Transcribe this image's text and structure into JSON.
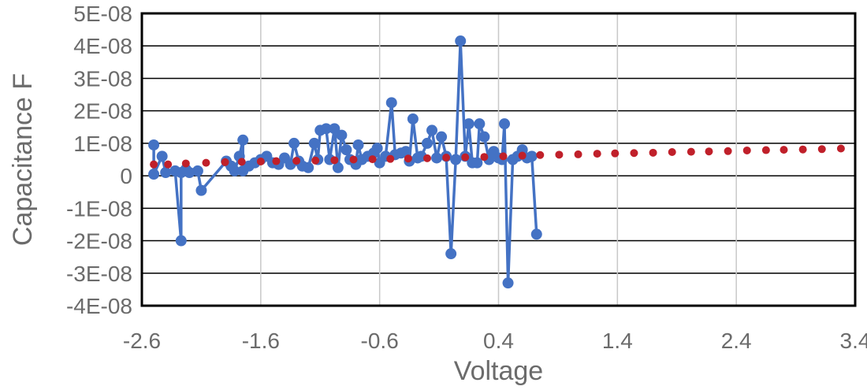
{
  "chart_data": {
    "type": "scatter",
    "title": "",
    "xlabel": "Voltage",
    "ylabel": "Capacitance F",
    "xlim": [
      -2.6,
      3.4
    ],
    "ylim": [
      -4e-08,
      5e-08
    ],
    "x_ticks": [
      -2.6,
      -1.6,
      -0.6,
      0.4,
      1.4,
      2.4,
      3.4
    ],
    "x_tick_labels": [
      "-2.6",
      "-1.6",
      "-0.6",
      "0.4",
      "1.4",
      "2.4",
      "3.4"
    ],
    "y_ticks": [
      5e-08,
      4e-08,
      3e-08,
      2e-08,
      1e-08,
      0,
      -1e-08,
      -2e-08,
      -3e-08,
      -4e-08
    ],
    "y_tick_labels": [
      "5E-08",
      "4E-08",
      "3E-08",
      "2E-08",
      "1E-08",
      "0",
      "-1E-08",
      "-2E-08",
      "-3E-08",
      "-4E-08"
    ],
    "grid": {
      "horizontal": true,
      "vertical": true
    },
    "legend": "none",
    "series": [
      {
        "color": "#4472c4",
        "style": "line-markers",
        "points": [
          [
            -2.5,
            9.5e-09
          ],
          [
            -2.5,
            5e-10
          ],
          [
            -2.43,
            6e-09
          ],
          [
            -2.4,
            1e-09
          ],
          [
            -2.32,
            1.5e-09
          ],
          [
            -2.27,
            -2e-08
          ],
          [
            -2.27,
            1e-09
          ],
          [
            -2.23,
            2e-09
          ],
          [
            -2.2,
            1e-09
          ],
          [
            -2.13,
            1.5e-09
          ],
          [
            -2.1,
            -4.5e-09
          ],
          [
            -1.89,
            4.5e-09
          ],
          [
            -1.85,
            3e-09
          ],
          [
            -1.82,
            1.5e-09
          ],
          [
            -1.78,
            6e-09
          ],
          [
            -1.75,
            1.1e-08
          ],
          [
            -1.75,
            1.5e-09
          ],
          [
            -1.7,
            3e-09
          ],
          [
            -1.65,
            4e-09
          ],
          [
            -1.6,
            5e-09
          ],
          [
            -1.55,
            6e-09
          ],
          [
            -1.5,
            4e-09
          ],
          [
            -1.45,
            3.5e-09
          ],
          [
            -1.4,
            5.5e-09
          ],
          [
            -1.35,
            3.5e-09
          ],
          [
            -1.32,
            1e-08
          ],
          [
            -1.28,
            4.5e-09
          ],
          [
            -1.25,
            3e-09
          ],
          [
            -1.2,
            2.5e-09
          ],
          [
            -1.15,
            1e-08
          ],
          [
            -1.12,
            5e-09
          ],
          [
            -1.1,
            1.4e-08
          ],
          [
            -1.05,
            1.45e-08
          ],
          [
            -1.02,
            5e-09
          ],
          [
            -0.98,
            1.45e-08
          ],
          [
            -0.95,
            2.5e-09
          ],
          [
            -0.92,
            1.25e-08
          ],
          [
            -0.88,
            8e-09
          ],
          [
            -0.85,
            5e-09
          ],
          [
            -0.8,
            3.5e-09
          ],
          [
            -0.78,
            9.5e-09
          ],
          [
            -0.75,
            5e-09
          ],
          [
            -0.7,
            6e-09
          ],
          [
            -0.65,
            7e-09
          ],
          [
            -0.62,
            8.5e-09
          ],
          [
            -0.6,
            4e-09
          ],
          [
            -0.55,
            6e-09
          ],
          [
            -0.5,
            2.25e-08
          ],
          [
            -0.47,
            6.5e-09
          ],
          [
            -0.42,
            7e-09
          ],
          [
            -0.38,
            7.5e-09
          ],
          [
            -0.35,
            4.5e-09
          ],
          [
            -0.32,
            1.75e-08
          ],
          [
            -0.28,
            5.5e-09
          ],
          [
            -0.25,
            6e-09
          ],
          [
            -0.2,
            1e-08
          ],
          [
            -0.16,
            1.4e-08
          ],
          [
            -0.12,
            5.5e-09
          ],
          [
            -0.08,
            1.2e-08
          ],
          [
            -0.04,
            6e-09
          ],
          [
            0.0,
            -2.4e-08
          ],
          [
            0.04,
            5e-09
          ],
          [
            0.08,
            4.15e-08
          ],
          [
            0.12,
            6e-09
          ],
          [
            0.15,
            1.6e-08
          ],
          [
            0.18,
            4e-09
          ],
          [
            0.22,
            4e-09
          ],
          [
            0.24,
            1.6e-08
          ],
          [
            0.28,
            1.2e-08
          ],
          [
            0.32,
            5e-09
          ],
          [
            0.36,
            7.5e-09
          ],
          [
            0.4,
            5.5e-09
          ],
          [
            0.43,
            5e-09
          ],
          [
            0.45,
            1.6e-08
          ],
          [
            0.48,
            -3.3e-08
          ],
          [
            0.52,
            5e-09
          ],
          [
            0.56,
            6e-09
          ],
          [
            0.6,
            8e-09
          ],
          [
            0.64,
            5.5e-09
          ],
          [
            0.68,
            6e-09
          ],
          [
            0.72,
            -1.8e-08
          ]
        ]
      },
      {
        "color": "#c0202a",
        "style": "markers",
        "points": [
          [
            -2.5,
            3.5e-09
          ],
          [
            -2.38,
            3.5e-09
          ],
          [
            -2.23,
            3.8e-09
          ],
          [
            -2.06,
            4e-09
          ],
          [
            -1.9,
            4.2e-09
          ],
          [
            -1.76,
            4.3e-09
          ],
          [
            -1.6,
            4.4e-09
          ],
          [
            -1.47,
            4.5e-09
          ],
          [
            -1.3,
            4.6e-09
          ],
          [
            -1.14,
            4.7e-09
          ],
          [
            -0.98,
            4.8e-09
          ],
          [
            -0.82,
            5e-09
          ],
          [
            -0.66,
            5.1e-09
          ],
          [
            -0.51,
            5.2e-09
          ],
          [
            -0.36,
            5.3e-09
          ],
          [
            -0.2,
            5.4e-09
          ],
          [
            -0.04,
            5.6e-09
          ],
          [
            0.12,
            5.7e-09
          ],
          [
            0.28,
            5.8e-09
          ],
          [
            0.44,
            6e-09
          ],
          [
            0.6,
            6.2e-09
          ],
          [
            0.75,
            6.4e-09
          ],
          [
            0.91,
            6.5e-09
          ],
          [
            1.07,
            6.6e-09
          ],
          [
            1.23,
            6.8e-09
          ],
          [
            1.38,
            6.9e-09
          ],
          [
            1.54,
            7e-09
          ],
          [
            1.7,
            7.1e-09
          ],
          [
            1.86,
            7.3e-09
          ],
          [
            2.02,
            7.4e-09
          ],
          [
            2.17,
            7.5e-09
          ],
          [
            2.33,
            7.6e-09
          ],
          [
            2.49,
            7.8e-09
          ],
          [
            2.65,
            7.9e-09
          ],
          [
            2.8,
            8e-09
          ],
          [
            2.96,
            8.1e-09
          ],
          [
            3.12,
            8.2e-09
          ],
          [
            3.28,
            8.4e-09
          ]
        ]
      }
    ]
  }
}
